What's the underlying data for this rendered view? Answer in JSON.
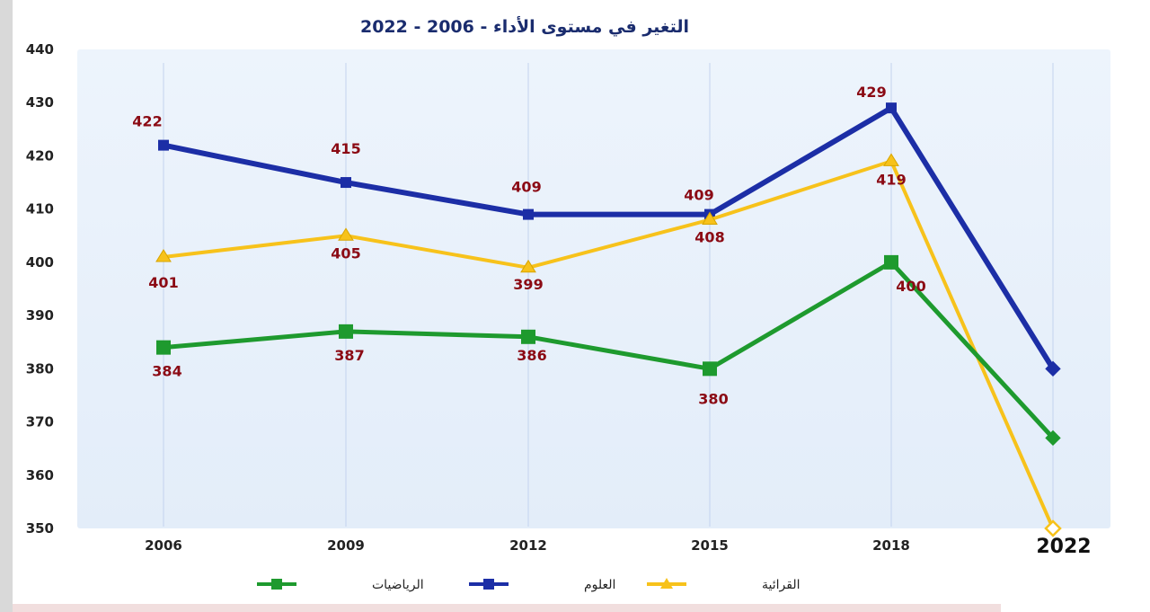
{
  "chart_data": {
    "type": "line",
    "title": "التغير في مستوى الأداء  - 2006 - 2022",
    "categories": [
      "2006",
      "2009",
      "2012",
      "2015",
      "2018",
      "2022"
    ],
    "ylim": [
      350,
      440
    ],
    "yticks": [
      350,
      360,
      370,
      380,
      390,
      400,
      410,
      420,
      430,
      440
    ],
    "grid": "vertical",
    "legend": "bottom",
    "series": [
      {
        "name": "العلوم",
        "color": "#1c2ea6",
        "values": [
          422,
          415,
          409,
          409,
          429,
          380
        ],
        "labels": [
          "422",
          "415",
          "409",
          "409",
          "429",
          ""
        ]
      },
      {
        "name": "القرائية",
        "color": "#f7c21b",
        "values": [
          401,
          405,
          399,
          408,
          419,
          350
        ],
        "labels": [
          "401",
          "405",
          "399",
          "408",
          "419",
          ""
        ]
      },
      {
        "name": "الرياضيات",
        "color": "#1e9a2e",
        "values": [
          384,
          387,
          386,
          380,
          400,
          367
        ],
        "labels": [
          "384",
          "387",
          "386",
          "380",
          "400",
          ""
        ]
      }
    ]
  },
  "colors": {
    "plot_background": "#e9f1fb",
    "title": "#1a2c6e",
    "data_label": "#8b0a14"
  }
}
